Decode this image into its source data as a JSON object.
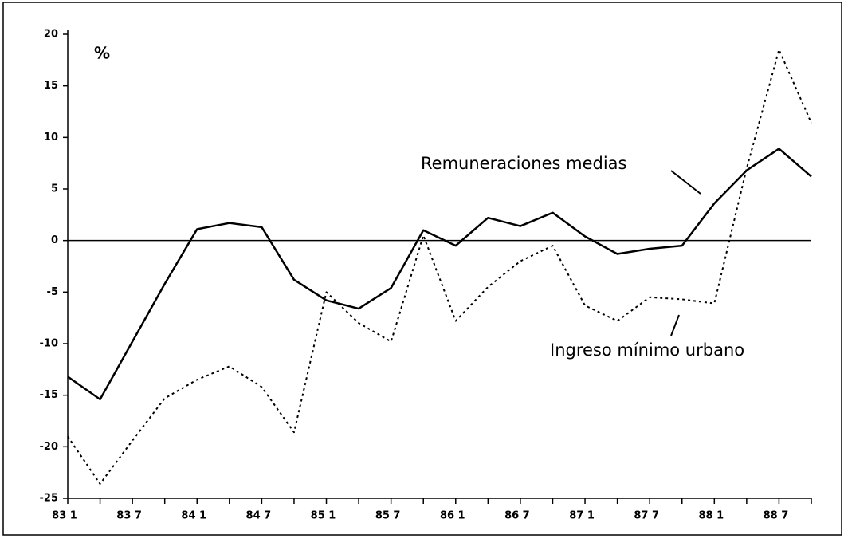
{
  "chart_data": {
    "type": "line",
    "y_label": "%",
    "categories": [
      "83 1",
      null,
      "83 7",
      null,
      "84 1",
      null,
      "84 7",
      null,
      "85 1",
      null,
      "85 7",
      null,
      "86 1",
      null,
      "86 7",
      null,
      "87 1",
      null,
      "87 7",
      null,
      "88 1",
      null,
      "88 7",
      null
    ],
    "series": [
      {
        "name": "Remuneraciones medias",
        "color": "#000000",
        "style": "solid",
        "values": [
          -13.2,
          -15.4,
          -9.8,
          -4.2,
          1.1,
          1.7,
          1.3,
          -3.8,
          -5.8,
          -6.6,
          -4.6,
          1.0,
          -0.5,
          2.2,
          1.4,
          2.7,
          0.4,
          -1.3,
          -0.8,
          -0.5,
          3.6,
          6.8,
          8.9,
          6.2
        ]
      },
      {
        "name": "Ingreso mínimo urbano",
        "color": "#000000",
        "style": "dotted",
        "values": [
          -19.0,
          -23.6,
          -19.4,
          -15.3,
          -13.5,
          -12.2,
          -14.2,
          -18.6,
          -5.0,
          -8.0,
          -9.8,
          0.5,
          -7.8,
          -4.5,
          -2.0,
          -0.5,
          -6.3,
          -7.8,
          -5.5,
          -5.7,
          -6.1,
          7.0,
          18.5,
          11.4
        ]
      }
    ],
    "ylim": [
      -25,
      20
    ],
    "yticks": [
      -25,
      -20,
      -15,
      -10,
      -5,
      0,
      5,
      10,
      15,
      20
    ],
    "zero_line": true
  }
}
